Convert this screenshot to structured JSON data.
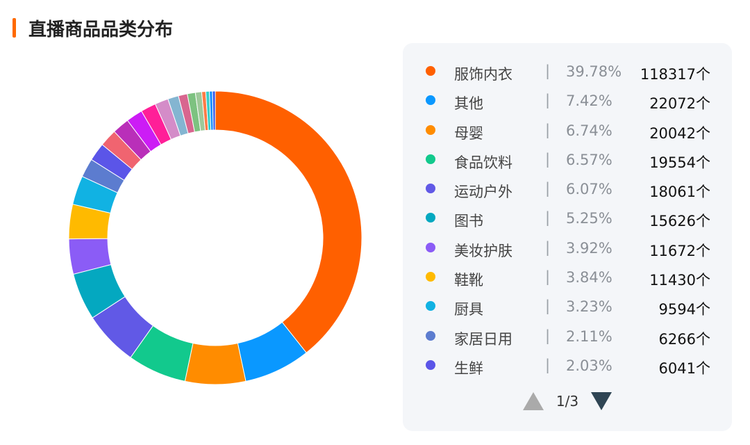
{
  "header": {
    "title": "直播商品品类分布",
    "accent_color": "#ff6a00"
  },
  "chart_data": {
    "type": "pie",
    "donut": true,
    "legend_position": "right",
    "slices": [
      {
        "name": "服饰内衣",
        "percent": "39.78%",
        "count": "118317个",
        "value": 39.78,
        "color": "#ff6000"
      },
      {
        "name": "其他",
        "percent": "7.42%",
        "count": "22072个",
        "value": 7.42,
        "color": "#0a98ff"
      },
      {
        "name": "母婴",
        "percent": "6.74%",
        "count": "20042个",
        "value": 6.74,
        "color": "#ff8c00"
      },
      {
        "name": "食品饮料",
        "percent": "6.57%",
        "count": "19554个",
        "value": 6.57,
        "color": "#12c98d"
      },
      {
        "name": "运动户外",
        "percent": "6.07%",
        "count": "18061个",
        "value": 6.07,
        "color": "#6159e6"
      },
      {
        "name": "图书",
        "percent": "5.25%",
        "count": "15626个",
        "value": 5.25,
        "color": "#04a8c0"
      },
      {
        "name": "美妆护肤",
        "percent": "3.92%",
        "count": "11672个",
        "value": 3.92,
        "color": "#8b5cf6"
      },
      {
        "name": "鞋靴",
        "percent": "3.84%",
        "count": "11430个",
        "value": 3.84,
        "color": "#ffba00"
      },
      {
        "name": "厨具",
        "percent": "3.23%",
        "count": "9594个",
        "value": 3.23,
        "color": "#11b2e3"
      },
      {
        "name": "家居日用",
        "percent": "2.11%",
        "count": "6266个",
        "value": 2.11,
        "color": "#5c7ccf"
      },
      {
        "name": "生鲜",
        "percent": "2.03%",
        "count": "6041个",
        "value": 2.03,
        "color": "#5b55e8"
      }
    ],
    "unlisted_slices": [
      {
        "value": 1.95,
        "color": "#f06470"
      },
      {
        "value": 1.9,
        "color": "#b92fb9"
      },
      {
        "value": 1.85,
        "color": "#cc1cf5"
      },
      {
        "value": 1.7,
        "color": "#ff1f98"
      },
      {
        "value": 1.5,
        "color": "#d48cc8"
      },
      {
        "value": 1.2,
        "color": "#84b5d1"
      },
      {
        "value": 1.0,
        "color": "#d8668f"
      },
      {
        "value": 0.9,
        "color": "#7dc280"
      },
      {
        "value": 0.7,
        "color": "#9ec99a"
      },
      {
        "value": 0.45,
        "color": "#ff7a45"
      },
      {
        "value": 0.4,
        "color": "#36cfc9"
      },
      {
        "value": 0.35,
        "color": "#1890ff"
      },
      {
        "value": 0.3,
        "color": "#2f54eb"
      }
    ]
  },
  "pager": {
    "text": "1/3",
    "separator": "|"
  }
}
